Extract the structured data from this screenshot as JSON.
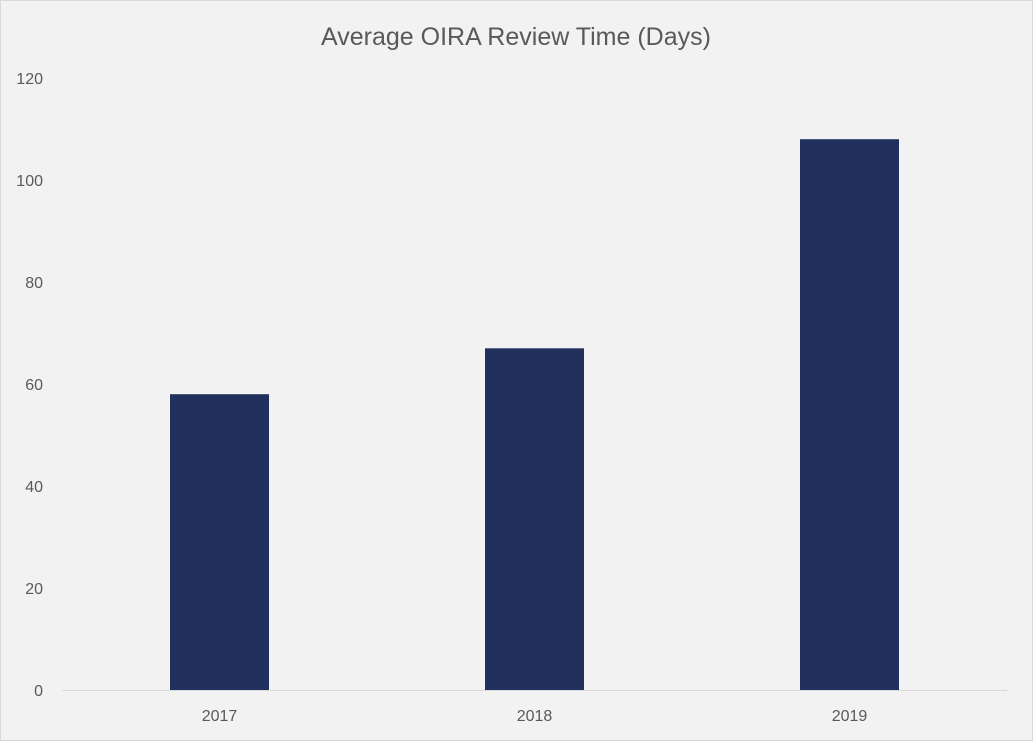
{
  "chart_data": {
    "type": "bar",
    "title": "Average OIRA Review Time (Days)",
    "xlabel": "",
    "ylabel": "",
    "categories": [
      "2017",
      "2018",
      "2019"
    ],
    "values": [
      58,
      67,
      108
    ],
    "ylim": [
      0,
      120
    ],
    "yticks": [
      0,
      20,
      40,
      60,
      80,
      100,
      120
    ],
    "grid": false,
    "legend": "none",
    "colors": {
      "bar": "#22305e",
      "background": "#f2f2f2",
      "axis": "#d9d9d9",
      "text": "#595959"
    }
  }
}
